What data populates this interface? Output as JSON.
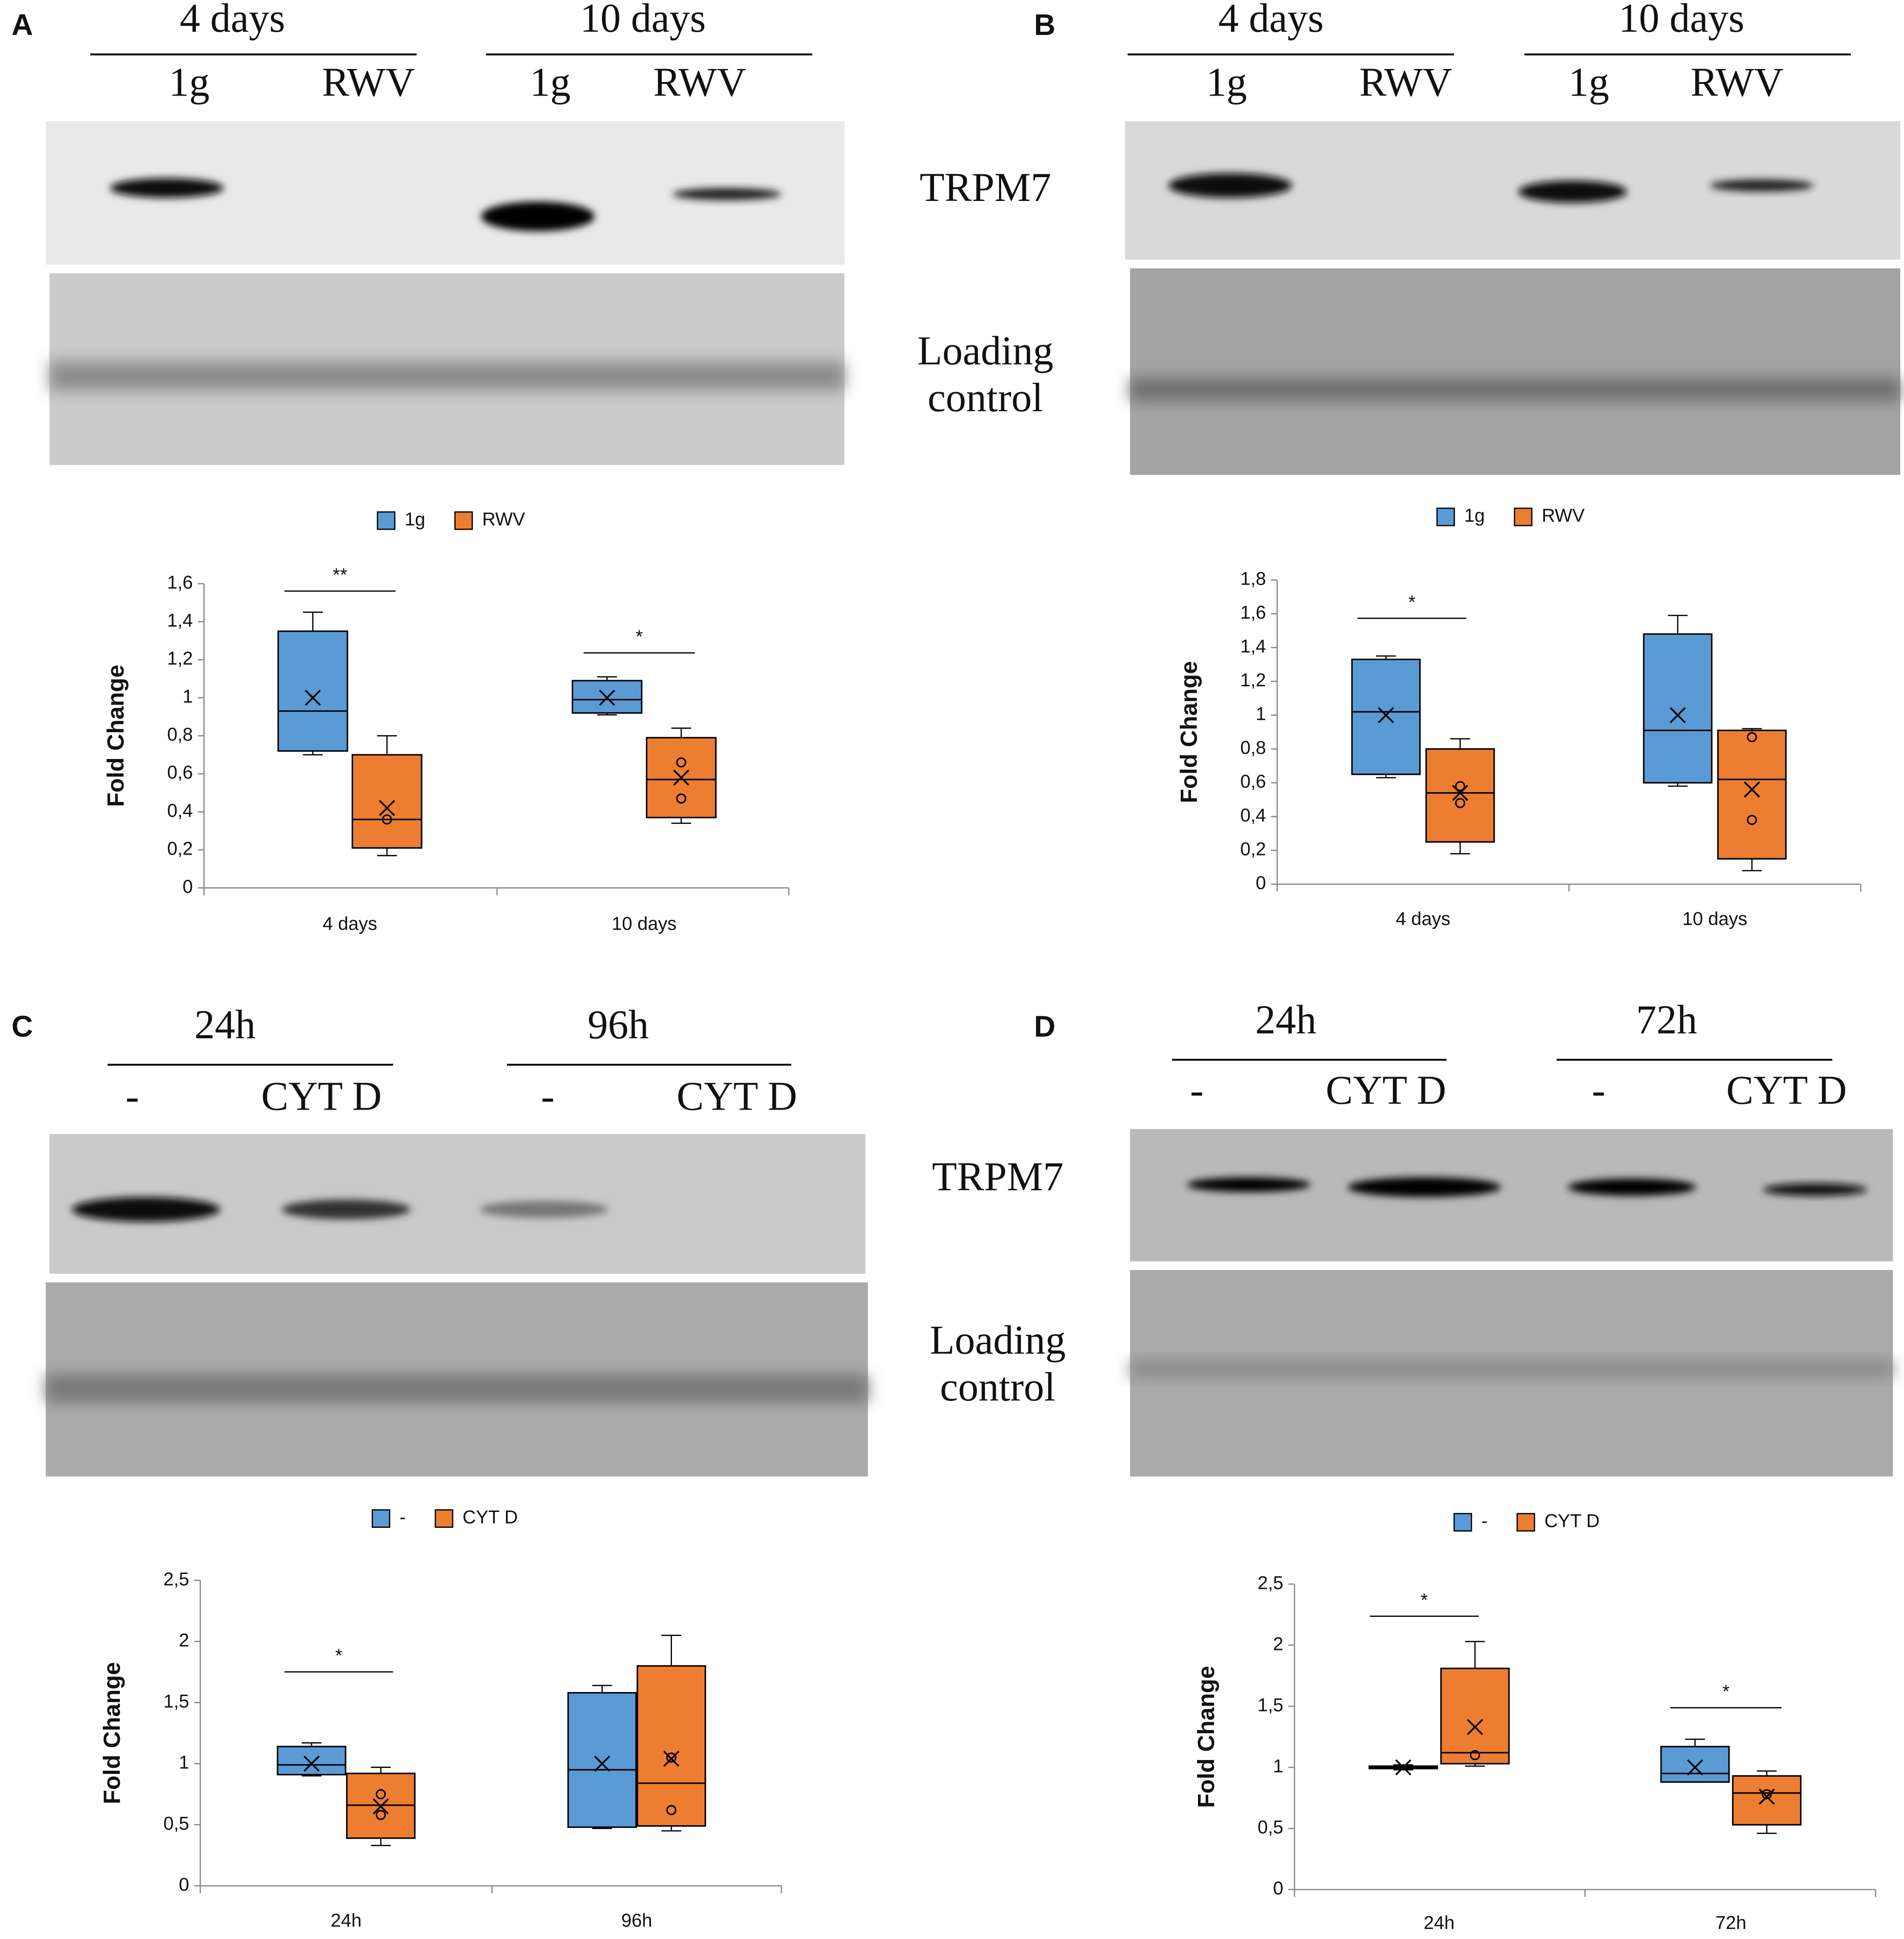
{
  "panels": [
    {
      "letter": "A",
      "groups": [
        {
          "label": "4 days",
          "lanes": [
            "1g",
            "RWV"
          ]
        },
        {
          "label": "10 days",
          "lanes": [
            "1g",
            "RWV"
          ]
        }
      ]
    },
    {
      "letter": "B",
      "groups": [
        {
          "label": "4 days",
          "lanes": [
            "1g",
            "RWV"
          ]
        },
        {
          "label": "10 days",
          "lanes": [
            "1g",
            "RWV"
          ]
        }
      ]
    },
    {
      "letter": "C",
      "groups": [
        {
          "label": "24h",
          "lanes": [
            "-",
            "CYT D"
          ]
        },
        {
          "label": "96h",
          "lanes": [
            "-",
            "CYT D"
          ]
        }
      ]
    },
    {
      "letter": "D",
      "groups": [
        {
          "label": "24h",
          "lanes": [
            "-",
            "CYT D"
          ]
        },
        {
          "label": "72h",
          "lanes": [
            "-",
            "CYT D"
          ]
        }
      ]
    }
  ],
  "blot_labels": [
    {
      "protein": "TRPM7",
      "control": [
        "Loading",
        "control"
      ]
    },
    {
      "protein": "TRPM7",
      "control": [
        "Loading",
        "control"
      ]
    }
  ],
  "chart_data": [
    {
      "type": "box",
      "ylabel": "Fold Change",
      "categories": [
        "4 days",
        "10 days"
      ],
      "ylim": [
        0,
        1.6
      ],
      "yticks": [
        0,
        {
          "value": 0.2,
          "label": "0,2"
        },
        {
          "value": 0.4,
          "label": "0,4"
        },
        {
          "value": 0.6,
          "label": "0,6"
        },
        {
          "value": 0.8,
          "label": "0,8"
        },
        1,
        {
          "value": 1.2,
          "label": "1,2"
        },
        {
          "value": 1.4,
          "label": "1,4"
        },
        {
          "value": 1.6,
          "label": "1,6"
        }
      ],
      "significance": [
        "**",
        "*"
      ],
      "series": [
        {
          "name": "1g",
          "color": "#5b9bd5",
          "boxes": [
            {
              "min": 0.7,
              "q1": 0.72,
              "median": 0.93,
              "q3": 1.35,
              "max": 1.45,
              "mean": 1.0,
              "points": []
            },
            {
              "min": 0.91,
              "q1": 0.92,
              "median": 0.99,
              "q3": 1.09,
              "max": 1.11,
              "mean": 1.0,
              "points": []
            }
          ]
        },
        {
          "name": "RWV",
          "color": "#ed7d31",
          "boxes": [
            {
              "min": 0.17,
              "q1": 0.21,
              "median": 0.36,
              "q3": 0.7,
              "max": 0.8,
              "mean": 0.42,
              "points": [
                0.36
              ]
            },
            {
              "min": 0.34,
              "q1": 0.37,
              "median": 0.57,
              "q3": 0.79,
              "max": 0.84,
              "mean": 0.58,
              "points": [
                0.66,
                0.47
              ]
            }
          ]
        }
      ]
    },
    {
      "type": "box",
      "ylabel": "Fold Change",
      "categories": [
        "4 days",
        "10 days"
      ],
      "ylim": [
        0,
        1.8
      ],
      "yticks": [
        0,
        {
          "value": 0.2,
          "label": "0,2"
        },
        {
          "value": 0.4,
          "label": "0,4"
        },
        {
          "value": 0.6,
          "label": "0,6"
        },
        {
          "value": 0.8,
          "label": "0,8"
        },
        1,
        {
          "value": 1.2,
          "label": "1,2"
        },
        {
          "value": 1.4,
          "label": "1,4"
        },
        {
          "value": 1.6,
          "label": "1,6"
        },
        {
          "value": 1.8,
          "label": "1,8"
        }
      ],
      "significance": [
        "*",
        null
      ],
      "series": [
        {
          "name": "1g",
          "color": "#5b9bd5",
          "boxes": [
            {
              "min": 0.63,
              "q1": 0.65,
              "median": 1.02,
              "q3": 1.33,
              "max": 1.35,
              "mean": 1.0,
              "points": []
            },
            {
              "min": 0.58,
              "q1": 0.6,
              "median": 0.91,
              "q3": 1.48,
              "max": 1.59,
              "mean": 1.0,
              "points": []
            }
          ]
        },
        {
          "name": "RWV",
          "color": "#ed7d31",
          "boxes": [
            {
              "min": 0.18,
              "q1": 0.25,
              "median": 0.54,
              "q3": 0.8,
              "max": 0.86,
              "mean": 0.54,
              "points": [
                0.58,
                0.48
              ]
            },
            {
              "min": 0.08,
              "q1": 0.15,
              "median": 0.62,
              "q3": 0.91,
              "max": 0.92,
              "mean": 0.56,
              "points": [
                0.87,
                0.38
              ]
            }
          ]
        }
      ]
    },
    {
      "type": "box",
      "ylabel": "Fold Change",
      "categories": [
        "24h",
        "96h"
      ],
      "ylim": [
        0,
        2.5
      ],
      "yticks": [
        0,
        {
          "value": 0.5,
          "label": "0,5"
        },
        1,
        {
          "value": 1.5,
          "label": "1,5"
        },
        2,
        {
          "value": 2.5,
          "label": "2,5"
        }
      ],
      "significance": [
        "*",
        null
      ],
      "series": [
        {
          "name": "-",
          "color": "#5b9bd5",
          "boxes": [
            {
              "min": 0.9,
              "q1": 0.91,
              "median": 0.99,
              "q3": 1.14,
              "max": 1.17,
              "mean": 1.0,
              "points": []
            },
            {
              "min": 0.47,
              "q1": 0.48,
              "median": 0.95,
              "q3": 1.58,
              "max": 1.64,
              "mean": 1.0,
              "points": []
            }
          ]
        },
        {
          "name": "CYT D",
          "color": "#ed7d31",
          "boxes": [
            {
              "min": 0.33,
              "q1": 0.39,
              "median": 0.66,
              "q3": 0.92,
              "max": 0.97,
              "mean": 0.65,
              "points": [
                0.75,
                0.58
              ]
            },
            {
              "min": 0.45,
              "q1": 0.49,
              "median": 0.84,
              "q3": 1.8,
              "max": 2.05,
              "mean": 1.04,
              "points": [
                1.05,
                0.62
              ]
            }
          ]
        }
      ]
    },
    {
      "type": "box",
      "ylabel": "Fold Change",
      "categories": [
        "24h",
        "72h"
      ],
      "ylim": [
        0,
        2.5
      ],
      "yticks": [
        0,
        {
          "value": 0.5,
          "label": "0,5"
        },
        1,
        {
          "value": 1.5,
          "label": "1,5"
        },
        2,
        {
          "value": 2.5,
          "label": "2,5"
        }
      ],
      "significance": [
        "*",
        "*"
      ],
      "series": [
        {
          "name": "-",
          "color": "#5b9bd5",
          "boxes": [
            {
              "min": 0.98,
              "q1": 0.99,
              "median": 1.0,
              "q3": 1.01,
              "max": 1.02,
              "mean": 1.0,
              "points": []
            },
            {
              "min": 0.88,
              "q1": 0.88,
              "median": 0.95,
              "q3": 1.17,
              "max": 1.23,
              "mean": 1.0,
              "points": []
            }
          ]
        },
        {
          "name": "CYT D",
          "color": "#ed7d31",
          "boxes": [
            {
              "min": 1.01,
              "q1": 1.03,
              "median": 1.12,
              "q3": 1.81,
              "max": 2.03,
              "mean": 1.33,
              "points": [
                1.1
              ]
            },
            {
              "min": 0.46,
              "q1": 0.53,
              "median": 0.79,
              "q3": 0.93,
              "max": 0.97,
              "mean": 0.76,
              "points": [
                0.78
              ]
            }
          ]
        }
      ]
    }
  ]
}
